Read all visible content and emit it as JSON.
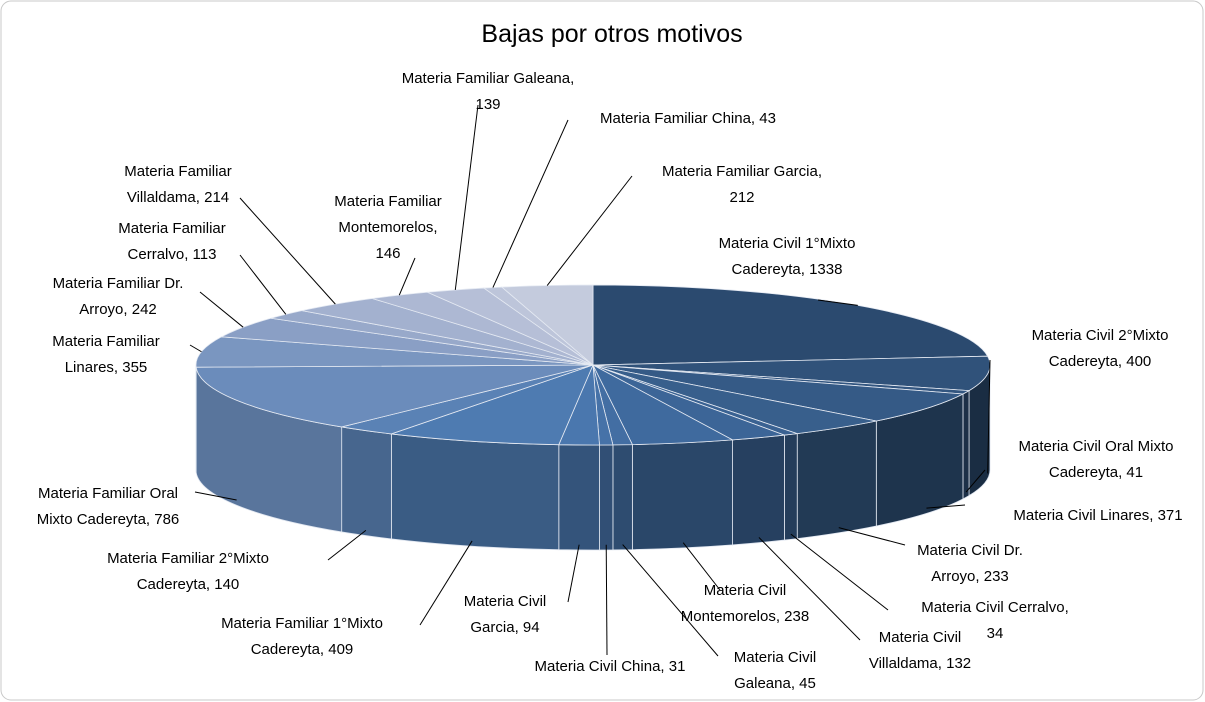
{
  "chart_data": {
    "type": "pie",
    "title": "Bajas por otros motivos",
    "values": [
      1338,
      400,
      41,
      371,
      233,
      34,
      132,
      238,
      45,
      31,
      94,
      409,
      140,
      786,
      355,
      242,
      113,
      214,
      146,
      139,
      43,
      212
    ],
    "value_labels": [
      "Materia Civil 1°Mixto Cadereyta, 1338",
      "Materia Civil 2°Mixto Cadereyta, 400",
      "Materia Civil Oral Mixto Cadereyta, 41",
      "Materia Civil Linares, 371",
      "Materia Civil Dr. Arroyo, 233",
      "Materia Civil Cerralvo, 34",
      "Materia Civil Villaldama, 132",
      "Materia Civil Montemorelos, 238",
      "Materia Civil Galeana, 45",
      "Materia Civil China, 31",
      "Materia Civil Garcia, 94",
      "Materia Familiar 1°Mixto Cadereyta, 409",
      "Materia Familiar 2°Mixto Cadereyta, 140",
      "Materia Familiar Oral Mixto Cadereyta, 786",
      "Materia Familiar Linares, 355",
      "Materia Familiar Dr. Arroyo, 242",
      "Materia Familiar Cerralvo, 113",
      "Materia Familiar Villaldama, 214",
      "Materia Familiar Montemorelos, 146",
      "Materia Familiar Galeana, 139",
      "Materia Familiar China, 43",
      "Materia Familiar Garcia, 212"
    ],
    "colors": [
      "#2b4a6f",
      "#30527a",
      "#335680",
      "#355a86",
      "#385f8c",
      "#3a6292",
      "#3c6597",
      "#3f6a9e",
      "#436ea3",
      "#4672a8",
      "#4a77ae",
      "#4e7bb1",
      "#5a82b5",
      "#6b8cbb",
      "#7a96c0",
      "#8a9fc5",
      "#98a9ca",
      "#a3b1cf",
      "#adb8d3",
      "#b6bfd7",
      "#bdc5da",
      "#c4cbdd"
    ]
  }
}
